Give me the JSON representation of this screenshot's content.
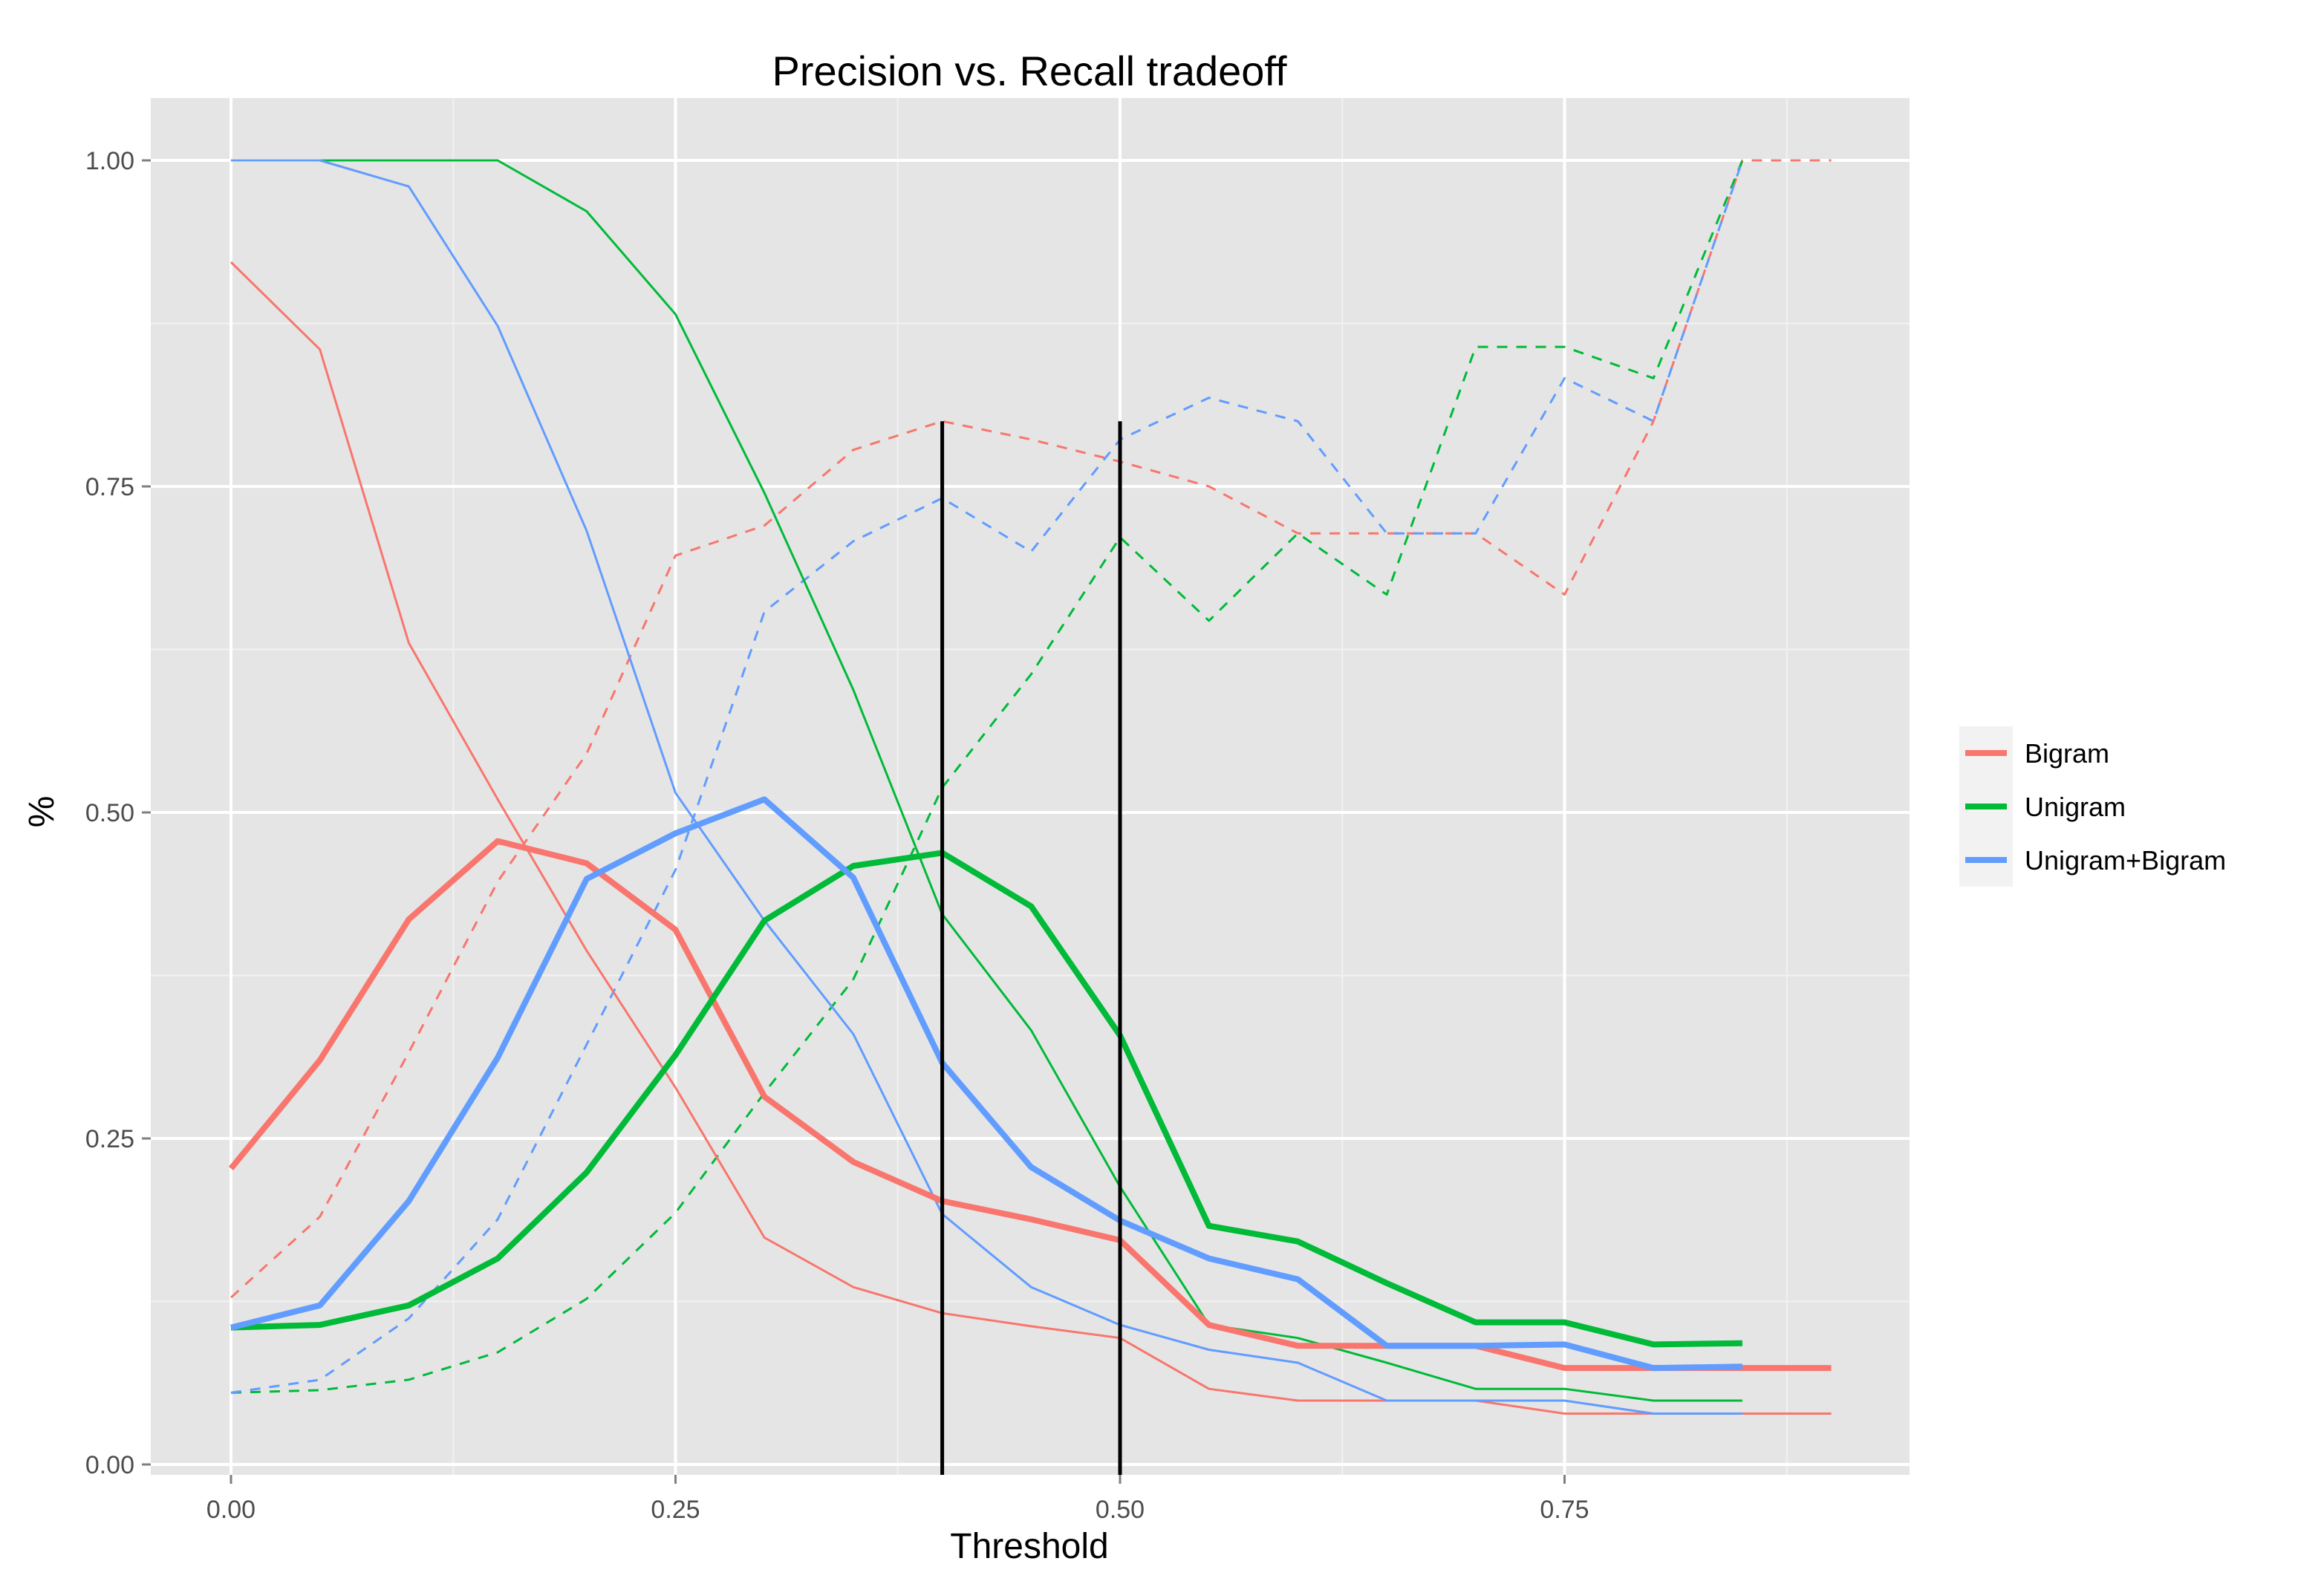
{
  "chart_data": {
    "type": "line",
    "title": "Precision vs. Recall tradeoff",
    "xlabel": "Threshold",
    "ylabel": "%",
    "xlim": [
      -0.09,
      0.9
    ],
    "ylim": [
      -0.01,
      1.05
    ],
    "x_ticks": [
      0.0,
      0.25,
      0.5,
      0.75
    ],
    "x_tick_labels": [
      "0.00",
      "0.25",
      "0.50",
      "0.75"
    ],
    "y_ticks": [
      0.0,
      0.25,
      0.5,
      0.75,
      1.0
    ],
    "y_tick_labels": [
      "0.00",
      "0.25",
      "0.50",
      "0.75",
      "1.00"
    ],
    "grid": true,
    "legend_position": "right",
    "colors": {
      "Bigram": "#F8766D",
      "Unigram": "#00BA38",
      "Unigram+Bigram": "#619CFF"
    },
    "legend": [
      "Bigram",
      "Unigram",
      "Unigram+Bigram"
    ],
    "vertical_lines": [
      0.4,
      0.5
    ],
    "series": [
      {
        "name": "Bigram",
        "style": "thick",
        "x": [
          0.0,
          0.05,
          0.1,
          0.15,
          0.2,
          0.25,
          0.3,
          0.35,
          0.4,
          0.45,
          0.5,
          0.55,
          0.6,
          0.65,
          0.7,
          0.75,
          0.8,
          0.85,
          0.9
        ],
        "y": [
          0.227,
          0.31,
          0.418,
          0.478,
          0.461,
          0.41,
          0.282,
          0.232,
          0.202,
          0.188,
          0.172,
          0.107,
          0.091,
          0.091,
          0.091,
          0.074,
          0.074,
          0.074,
          0.074
        ]
      },
      {
        "name": "Bigram",
        "style": "thin",
        "x": [
          0.0,
          0.05,
          0.1,
          0.15,
          0.2,
          0.25,
          0.3,
          0.35,
          0.4,
          0.45,
          0.5,
          0.55,
          0.6,
          0.65,
          0.7,
          0.75,
          0.8,
          0.85,
          0.9
        ],
        "y": [
          0.922,
          0.855,
          0.63,
          0.51,
          0.394,
          0.289,
          0.174,
          0.136,
          0.116,
          0.106,
          0.097,
          0.058,
          0.049,
          0.049,
          0.049,
          0.039,
          0.039,
          0.039,
          0.039
        ]
      },
      {
        "name": "Bigram",
        "style": "dashed",
        "x": [
          0.0,
          0.05,
          0.1,
          0.15,
          0.2,
          0.25,
          0.3,
          0.35,
          0.4,
          0.45,
          0.5,
          0.55,
          0.6,
          0.65,
          0.7,
          0.75,
          0.8,
          0.85,
          0.9
        ],
        "y": [
          0.128,
          0.19,
          0.316,
          0.447,
          0.545,
          0.697,
          0.72,
          0.778,
          0.8,
          0.786,
          0.769,
          0.75,
          0.714,
          0.714,
          0.714,
          0.667,
          0.8,
          1.0,
          1.0
        ]
      },
      {
        "name": "Unigram",
        "style": "thick",
        "x": [
          0.0,
          0.05,
          0.1,
          0.15,
          0.2,
          0.25,
          0.3,
          0.35,
          0.4,
          0.45,
          0.5,
          0.55,
          0.6,
          0.65,
          0.7,
          0.75,
          0.8,
          0.85
        ],
        "y": [
          0.105,
          0.107,
          0.122,
          0.158,
          0.224,
          0.314,
          0.417,
          0.459,
          0.469,
          0.428,
          0.329,
          0.183,
          0.171,
          0.139,
          0.109,
          0.109,
          0.092,
          0.093
        ]
      },
      {
        "name": "Unigram",
        "style": "thin",
        "x": [
          0.0,
          0.05,
          0.1,
          0.15,
          0.2,
          0.25,
          0.3,
          0.35,
          0.4,
          0.45,
          0.5,
          0.55,
          0.6,
          0.65,
          0.7,
          0.75,
          0.8,
          0.85
        ],
        "y": [
          1.0,
          1.0,
          1.0,
          1.0,
          0.961,
          0.882,
          0.745,
          0.594,
          0.422,
          0.333,
          0.213,
          0.107,
          0.097,
          0.078,
          0.058,
          0.058,
          0.049,
          0.049
        ]
      },
      {
        "name": "Unigram",
        "style": "dashed",
        "x": [
          0.0,
          0.05,
          0.1,
          0.15,
          0.2,
          0.25,
          0.3,
          0.35,
          0.4,
          0.45,
          0.5,
          0.55,
          0.6,
          0.65,
          0.7,
          0.75,
          0.8,
          0.85
        ],
        "y": [
          0.055,
          0.057,
          0.065,
          0.086,
          0.127,
          0.193,
          0.285,
          0.372,
          0.519,
          0.606,
          0.711,
          0.647,
          0.714,
          0.667,
          0.857,
          0.857,
          0.833,
          1.0
        ]
      },
      {
        "name": "Unigram+Bigram",
        "style": "thick",
        "x": [
          0.0,
          0.05,
          0.1,
          0.15,
          0.2,
          0.25,
          0.3,
          0.35,
          0.4,
          0.45,
          0.5,
          0.55,
          0.6,
          0.65,
          0.7,
          0.75,
          0.8,
          0.85
        ],
        "y": [
          0.105,
          0.122,
          0.202,
          0.312,
          0.449,
          0.484,
          0.51,
          0.45,
          0.308,
          0.228,
          0.187,
          0.158,
          0.142,
          0.091,
          0.091,
          0.092,
          0.074,
          0.075
        ]
      },
      {
        "name": "Unigram+Bigram",
        "style": "thin",
        "x": [
          0.0,
          0.05,
          0.1,
          0.15,
          0.2,
          0.25,
          0.3,
          0.35,
          0.4,
          0.45,
          0.5,
          0.55,
          0.6,
          0.65,
          0.7,
          0.75,
          0.8,
          0.85
        ],
        "y": [
          1.0,
          1.0,
          0.98,
          0.873,
          0.716,
          0.515,
          0.417,
          0.33,
          0.192,
          0.136,
          0.107,
          0.088,
          0.078,
          0.049,
          0.049,
          0.049,
          0.039,
          0.039
        ]
      },
      {
        "name": "Unigram+Bigram",
        "style": "dashed",
        "x": [
          0.0,
          0.05,
          0.1,
          0.15,
          0.2,
          0.25,
          0.3,
          0.35,
          0.4,
          0.45,
          0.5,
          0.55,
          0.6,
          0.65,
          0.7,
          0.75,
          0.8,
          0.85
        ],
        "y": [
          0.055,
          0.065,
          0.112,
          0.188,
          0.322,
          0.456,
          0.654,
          0.708,
          0.741,
          0.7,
          0.786,
          0.818,
          0.8,
          0.714,
          0.714,
          0.833,
          0.8,
          1.0
        ]
      }
    ]
  }
}
